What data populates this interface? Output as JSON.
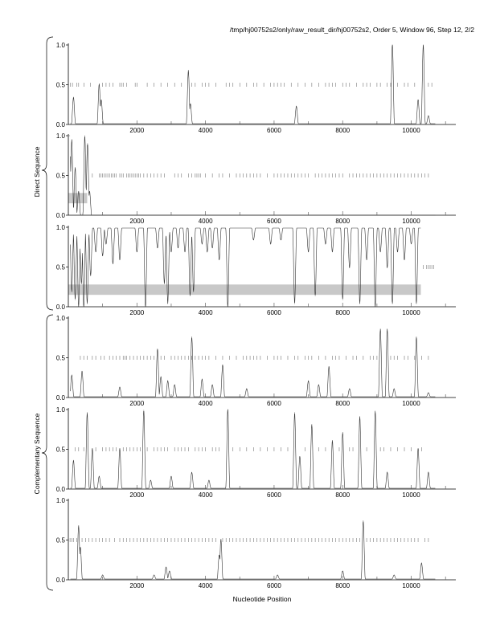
{
  "chart_data": {
    "type": "line",
    "title": "/tmp/hj00752s2/only/raw_result_dir/hj00752s2, Order 5, Window 96, Step 12, 2/2",
    "xlabel": "Nucleotide Position",
    "group_labels": [
      "Direct Sequence",
      "Complementary Sequence"
    ],
    "xlim": [
      0,
      11300
    ],
    "ylim": [
      0,
      1
    ],
    "x_ticks": [
      2000,
      4000,
      6000,
      8000,
      10000
    ],
    "x_tick_labels": [
      "2000",
      "4000",
      "6000",
      "8000",
      "10000"
    ],
    "y_ticks": [
      0,
      0.5,
      1
    ],
    "y_tick_labels": [
      "0.0",
      "0.5",
      "1.0"
    ],
    "panels": [
      {
        "name": "direct-frame-1",
        "baseline": 0.01,
        "peaks": [
          [
            150,
            0.33
          ],
          [
            900,
            0.5
          ],
          [
            960,
            0.3
          ],
          [
            3500,
            0.67
          ],
          [
            3560,
            0.25
          ],
          [
            6650,
            0.22
          ],
          [
            9450,
            1.0
          ],
          [
            10200,
            0.3
          ],
          [
            10350,
            1.0
          ],
          [
            10500,
            0.1
          ]
        ],
        "stops": [
          60,
          120,
          250,
          300,
          460,
          640,
          1000,
          1100,
          1200,
          1300,
          1500,
          1550,
          1600,
          1700,
          1950,
          2000,
          2300,
          2500,
          2700,
          2900,
          3100,
          3300,
          3600,
          3700,
          3900,
          4000,
          4100,
          4300,
          4600,
          4700,
          4800,
          5000,
          5200,
          5400,
          5500,
          5700,
          5900,
          6000,
          6100,
          6200,
          6300,
          6500,
          6700,
          6900,
          7100,
          7300,
          7500,
          7600,
          7700,
          7800,
          8000,
          8100,
          8200,
          8400,
          8600,
          8700,
          8800,
          9000,
          9100,
          9300,
          9400,
          9600,
          9800,
          9900,
          10100,
          10500,
          10600
        ],
        "shade": null
      },
      {
        "name": "direct-frame-2",
        "baseline": 0.0,
        "peaks": [
          [
            40,
            1.0
          ],
          [
            100,
            0.95
          ],
          [
            200,
            0.6
          ],
          [
            300,
            0.3
          ],
          [
            480,
            1.0
          ],
          [
            560,
            0.9
          ],
          [
            620,
            0.3
          ]
        ],
        "stops": [
          700,
          900,
          950,
          1000,
          1050,
          1100,
          1150,
          1200,
          1250,
          1300,
          1350,
          1400,
          1500,
          1550,
          1600,
          1700,
          1750,
          1800,
          1850,
          1900,
          1950,
          2000,
          2050,
          2100,
          2200,
          2300,
          2400,
          2500,
          2600,
          2700,
          2800,
          3100,
          3200,
          3300,
          3500,
          3600,
          3700,
          3750,
          3800,
          3850,
          4000,
          4200,
          4400,
          4500,
          4700,
          4900,
          5000,
          5100,
          5200,
          5300,
          5400,
          5500,
          5600,
          5800,
          6000,
          6100,
          6200,
          6300,
          6400,
          6500,
          6600,
          6700,
          6800,
          6900,
          7000,
          7200,
          7300,
          7400,
          7500,
          7600,
          7700,
          7800,
          7900,
          8000,
          8200,
          8300,
          8400,
          8500,
          8600,
          8700,
          8800,
          8900,
          9000,
          9100,
          9200,
          9300,
          9400,
          9500,
          9600,
          9700,
          9800,
          9900,
          10000,
          10100,
          10200,
          10300,
          10400,
          10500
        ],
        "shade": {
          "x": [
            0,
            550
          ],
          "y": [
            0.15,
            0.28
          ]
        }
      },
      {
        "name": "direct-frame-3",
        "baseline": 0.99,
        "inverted": true,
        "end": 10280,
        "peaks": [
          [
            100,
            0.8
          ],
          [
            200,
            0.9
          ],
          [
            300,
            1.0
          ],
          [
            380,
            0.7
          ],
          [
            450,
            1.0
          ],
          [
            550,
            0.95
          ],
          [
            650,
            0.6
          ],
          [
            800,
            0.3
          ],
          [
            1000,
            0.35
          ],
          [
            1100,
            0.2
          ],
          [
            1300,
            0.45
          ],
          [
            1500,
            0.4
          ],
          [
            2000,
            0.3
          ],
          [
            2250,
            1.0
          ],
          [
            2600,
            0.25
          ],
          [
            2800,
            0.7
          ],
          [
            2900,
            0.95
          ],
          [
            3000,
            0.3
          ],
          [
            3200,
            0.25
          ],
          [
            3400,
            0.3
          ],
          [
            3550,
            0.85
          ],
          [
            3650,
            0.8
          ],
          [
            3900,
            0.2
          ],
          [
            4050,
            0.3
          ],
          [
            4200,
            0.25
          ],
          [
            4400,
            0.4
          ],
          [
            4650,
            1.0
          ],
          [
            5400,
            0.15
          ],
          [
            5900,
            0.2
          ],
          [
            6200,
            0.15
          ],
          [
            6600,
            0.95
          ],
          [
            7000,
            0.3
          ],
          [
            7200,
            0.85
          ],
          [
            7500,
            0.2
          ],
          [
            7700,
            0.3
          ],
          [
            8000,
            0.9
          ],
          [
            8200,
            0.5
          ],
          [
            8500,
            0.95
          ],
          [
            8700,
            0.4
          ],
          [
            8950,
            1.0
          ],
          [
            9100,
            0.3
          ],
          [
            9300,
            0.5
          ],
          [
            9450,
            0.95
          ],
          [
            9600,
            0.3
          ],
          [
            9800,
            0.4
          ],
          [
            10000,
            0.2
          ],
          [
            10150,
            0.95
          ]
        ],
        "stops": [
          10350,
          10450,
          10500,
          10550,
          10600,
          10650
        ],
        "shade": {
          "x": [
            0,
            10280
          ],
          "y": [
            0.15,
            0.28
          ]
        }
      },
      {
        "name": "complementary-frame-1",
        "baseline": 0.01,
        "peaks": [
          [
            100,
            0.27
          ],
          [
            400,
            0.32
          ],
          [
            1500,
            0.12
          ],
          [
            2600,
            0.6
          ],
          [
            2700,
            0.25
          ],
          [
            2900,
            0.2
          ],
          [
            3100,
            0.15
          ],
          [
            3600,
            0.75
          ],
          [
            3900,
            0.22
          ],
          [
            4200,
            0.15
          ],
          [
            4500,
            0.4
          ],
          [
            5200,
            0.1
          ],
          [
            7000,
            0.2
          ],
          [
            7300,
            0.15
          ],
          [
            7600,
            0.38
          ],
          [
            8200,
            0.1
          ],
          [
            9100,
            0.85
          ],
          [
            9300,
            0.85
          ],
          [
            9500,
            0.1
          ],
          [
            10150,
            0.75
          ],
          [
            10500,
            0.05
          ]
        ],
        "stops": [
          350,
          450,
          550,
          700,
          800,
          950,
          1050,
          1200,
          1300,
          1400,
          1500,
          1600,
          1650,
          1700,
          1800,
          1900,
          2000,
          2100,
          2200,
          2300,
          2400,
          2500,
          2700,
          2800,
          3000,
          3100,
          3200,
          3300,
          3400,
          3500,
          3600,
          3700,
          3800,
          3900,
          4000,
          4100,
          4300,
          4500,
          4700,
          4900,
          5100,
          5200,
          5300,
          5400,
          5500,
          5600,
          5800,
          6000,
          6100,
          6200,
          6400,
          6600,
          6700,
          6900,
          7000,
          7100,
          7300,
          7500,
          7700,
          7800,
          7900,
          8100,
          8300,
          8400,
          8600,
          8800,
          8900,
          9000,
          9400,
          9500,
          9600,
          9800,
          9900,
          10100,
          10300,
          10500
        ],
        "shade": null
      },
      {
        "name": "complementary-frame-2",
        "baseline": 0.01,
        "peaks": [
          [
            150,
            0.35
          ],
          [
            550,
            0.95
          ],
          [
            700,
            0.5
          ],
          [
            900,
            0.15
          ],
          [
            1500,
            0.5
          ],
          [
            2200,
            0.98
          ],
          [
            2400,
            0.1
          ],
          [
            3000,
            0.15
          ],
          [
            3600,
            0.2
          ],
          [
            4100,
            0.1
          ],
          [
            4650,
            1.0
          ],
          [
            6600,
            0.95
          ],
          [
            6750,
            0.4
          ],
          [
            7100,
            0.8
          ],
          [
            7700,
            0.6
          ],
          [
            8000,
            0.7
          ],
          [
            8500,
            0.9
          ],
          [
            8950,
            0.97
          ],
          [
            9300,
            0.2
          ],
          [
            10200,
            0.5
          ],
          [
            10500,
            0.2
          ]
        ],
        "stops": [
          200,
          300,
          450,
          800,
          1000,
          1100,
          1200,
          1300,
          1400,
          1600,
          1700,
          1800,
          1900,
          2000,
          2100,
          2300,
          2500,
          2600,
          2700,
          2800,
          2900,
          3100,
          3200,
          3300,
          3400,
          3500,
          3700,
          3800,
          3900,
          4000,
          4200,
          4300,
          4400,
          4800,
          5000,
          5200,
          5400,
          5600,
          5800,
          6000,
          6200,
          6400,
          6900,
          7300,
          7500,
          7900,
          8200,
          8300,
          8700,
          9100,
          9200,
          9400,
          9600,
          9800,
          10000,
          10300
        ],
        "shade": null
      },
      {
        "name": "complementary-frame-3",
        "baseline": 0.01,
        "peaks": [
          [
            300,
            0.67
          ],
          [
            350,
            0.4
          ],
          [
            1000,
            0.05
          ],
          [
            2500,
            0.05
          ],
          [
            2850,
            0.15
          ],
          [
            2950,
            0.1
          ],
          [
            4450,
            0.5
          ],
          [
            4400,
            0.3
          ],
          [
            6100,
            0.05
          ],
          [
            8000,
            0.1
          ],
          [
            8600,
            0.73
          ],
          [
            9500,
            0.05
          ],
          [
            10300,
            0.2
          ]
        ],
        "stops": [
          50,
          100,
          150,
          250,
          400,
          500,
          600,
          700,
          800,
          900,
          1000,
          1100,
          1200,
          1350,
          1500,
          1600,
          1700,
          1800,
          1900,
          2000,
          2100,
          2200,
          2300,
          2400,
          2500,
          2600,
          2700,
          2800,
          2900,
          3000,
          3100,
          3200,
          3300,
          3400,
          3500,
          3600,
          3700,
          3800,
          3900,
          4000,
          4100,
          4200,
          4300,
          4500,
          4600,
          4700,
          4800,
          4900,
          5000,
          5100,
          5200,
          5300,
          5400,
          5500,
          5600,
          5700,
          5800,
          5900,
          6000,
          6100,
          6200,
          6300,
          6400,
          6500,
          6600,
          6700,
          6800,
          6900,
          7000,
          7100,
          7200,
          7300,
          7400,
          7500,
          7600,
          7700,
          7800,
          7900,
          8000,
          8100,
          8200,
          8300,
          8400,
          8500,
          8700,
          8800,
          8900,
          9000,
          9100,
          9200,
          9300,
          9400,
          9500,
          9600,
          9700,
          9800,
          9900,
          10000,
          10100,
          10200,
          10400,
          10500
        ],
        "shade": null
      }
    ]
  }
}
